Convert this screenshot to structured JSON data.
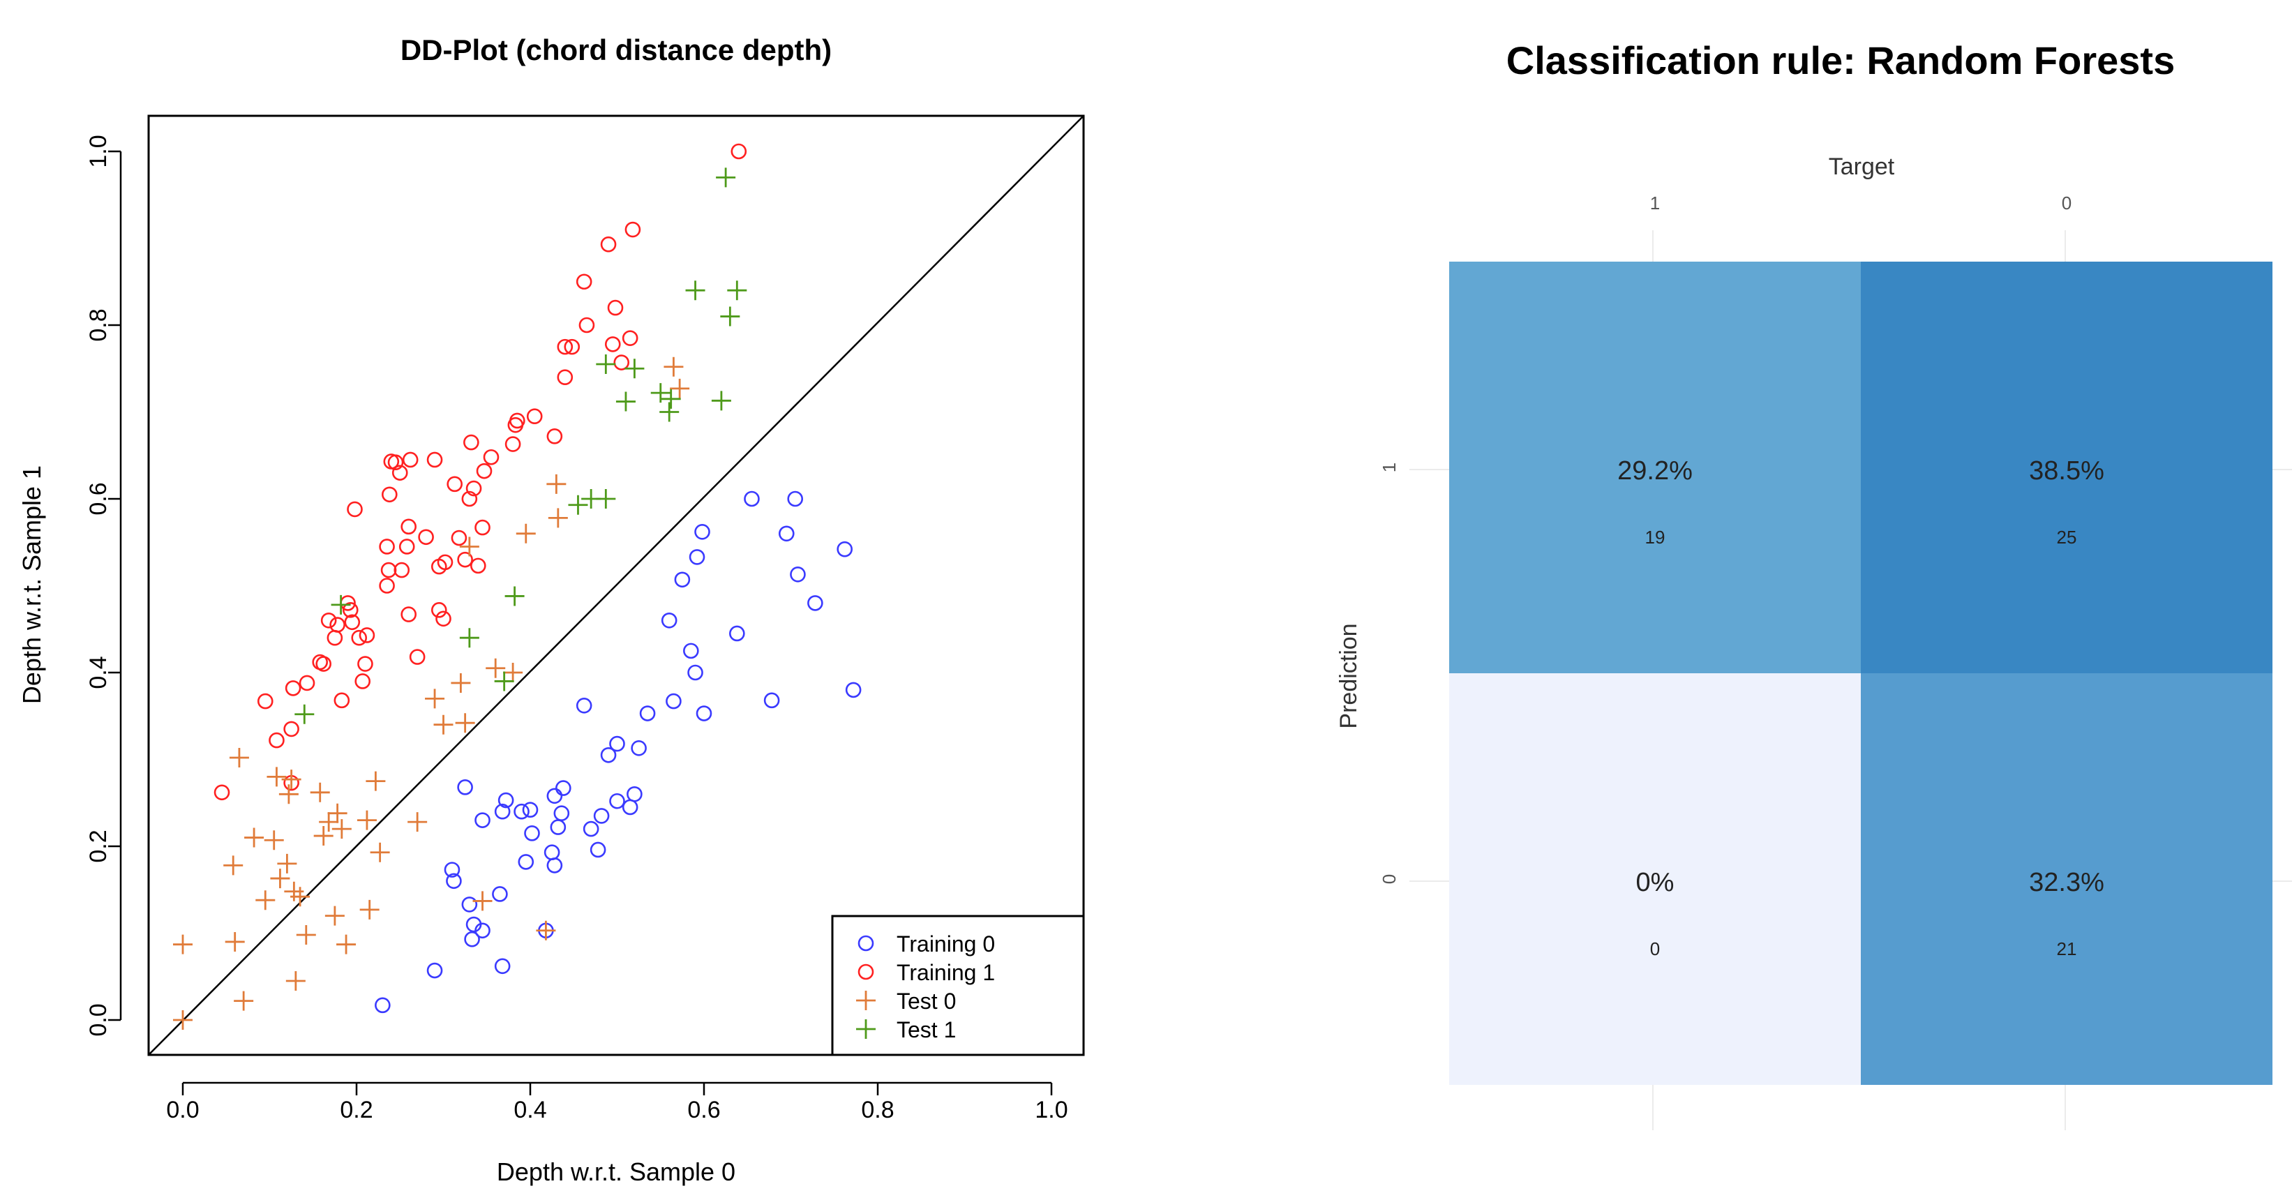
{
  "chart_data": [
    {
      "type": "scatter",
      "title": "DD-Plot (chord distance depth)",
      "xlabel": "Depth w.r.t. Sample 0",
      "ylabel": "Depth w.r.t. Sample 1",
      "xlim": [
        0,
        1
      ],
      "ylim": [
        0,
        1
      ],
      "xticks": [
        "0.0",
        "0.2",
        "0.4",
        "0.6",
        "0.8",
        "1.0"
      ],
      "yticks": [
        "0.0",
        "0.2",
        "0.4",
        "0.6",
        "0.8",
        "1.0"
      ],
      "diagonal": true,
      "legend_position": "bottom-right",
      "series": [
        {
          "name": "Training 0",
          "marker": "circle",
          "color": "#3a3aff",
          "points": [
            [
              0.23,
              0.017
            ],
            [
              0.29,
              0.057
            ],
            [
              0.31,
              0.173
            ],
            [
              0.312,
              0.16
            ],
            [
              0.325,
              0.268
            ],
            [
              0.33,
              0.133
            ],
            [
              0.333,
              0.093
            ],
            [
              0.335,
              0.11
            ],
            [
              0.345,
              0.103
            ],
            [
              0.345,
              0.23
            ],
            [
              0.365,
              0.145
            ],
            [
              0.368,
              0.062
            ],
            [
              0.368,
              0.24
            ],
            [
              0.372,
              0.253
            ],
            [
              0.39,
              0.24
            ],
            [
              0.395,
              0.182
            ],
            [
              0.4,
              0.242
            ],
            [
              0.402,
              0.215
            ],
            [
              0.418,
              0.103
            ],
            [
              0.425,
              0.193
            ],
            [
              0.428,
              0.258
            ],
            [
              0.428,
              0.178
            ],
            [
              0.432,
              0.222
            ],
            [
              0.436,
              0.238
            ],
            [
              0.438,
              0.267
            ],
            [
              0.462,
              0.362
            ],
            [
              0.47,
              0.22
            ],
            [
              0.478,
              0.196
            ],
            [
              0.482,
              0.235
            ],
            [
              0.49,
              0.305
            ],
            [
              0.5,
              0.318
            ],
            [
              0.5,
              0.252
            ],
            [
              0.515,
              0.245
            ],
            [
              0.52,
              0.26
            ],
            [
              0.525,
              0.313
            ],
            [
              0.535,
              0.353
            ],
            [
              0.56,
              0.46
            ],
            [
              0.565,
              0.367
            ],
            [
              0.575,
              0.507
            ],
            [
              0.585,
              0.425
            ],
            [
              0.59,
              0.4
            ],
            [
              0.592,
              0.533
            ],
            [
              0.598,
              0.562
            ],
            [
              0.6,
              0.353
            ],
            [
              0.638,
              0.445
            ],
            [
              0.655,
              0.6
            ],
            [
              0.678,
              0.368
            ],
            [
              0.695,
              0.56
            ],
            [
              0.705,
              0.6
            ],
            [
              0.708,
              0.513
            ],
            [
              0.728,
              0.48
            ],
            [
              0.762,
              0.542
            ],
            [
              0.772,
              0.38
            ]
          ]
        },
        {
          "name": "Training 1",
          "marker": "circle",
          "color": "#ff2020",
          "points": [
            [
              0.045,
              0.262
            ],
            [
              0.095,
              0.367
            ],
            [
              0.108,
              0.322
            ],
            [
              0.125,
              0.335
            ],
            [
              0.125,
              0.273
            ],
            [
              0.127,
              0.382
            ],
            [
              0.143,
              0.388
            ],
            [
              0.158,
              0.412
            ],
            [
              0.162,
              0.41
            ],
            [
              0.168,
              0.46
            ],
            [
              0.175,
              0.44
            ],
            [
              0.178,
              0.455
            ],
            [
              0.183,
              0.368
            ],
            [
              0.19,
              0.48
            ],
            [
              0.193,
              0.472
            ],
            [
              0.195,
              0.458
            ],
            [
              0.198,
              0.588
            ],
            [
              0.203,
              0.44
            ],
            [
              0.207,
              0.39
            ],
            [
              0.21,
              0.41
            ],
            [
              0.212,
              0.443
            ],
            [
              0.235,
              0.545
            ],
            [
              0.235,
              0.5
            ],
            [
              0.237,
              0.518
            ],
            [
              0.238,
              0.605
            ],
            [
              0.24,
              0.643
            ],
            [
              0.245,
              0.642
            ],
            [
              0.25,
              0.63
            ],
            [
              0.252,
              0.518
            ],
            [
              0.258,
              0.545
            ],
            [
              0.26,
              0.568
            ],
            [
              0.26,
              0.467
            ],
            [
              0.262,
              0.645
            ],
            [
              0.27,
              0.418
            ],
            [
              0.28,
              0.556
            ],
            [
              0.29,
              0.645
            ],
            [
              0.295,
              0.522
            ],
            [
              0.295,
              0.472
            ],
            [
              0.3,
              0.462
            ],
            [
              0.302,
              0.527
            ],
            [
              0.313,
              0.617
            ],
            [
              0.318,
              0.555
            ],
            [
              0.325,
              0.53
            ],
            [
              0.33,
              0.6
            ],
            [
              0.332,
              0.665
            ],
            [
              0.335,
              0.612
            ],
            [
              0.34,
              0.523
            ],
            [
              0.345,
              0.567
            ],
            [
              0.347,
              0.632
            ],
            [
              0.355,
              0.648
            ],
            [
              0.38,
              0.663
            ],
            [
              0.383,
              0.685
            ],
            [
              0.385,
              0.69
            ],
            [
              0.405,
              0.695
            ],
            [
              0.428,
              0.672
            ],
            [
              0.44,
              0.74
            ],
            [
              0.44,
              0.775
            ],
            [
              0.448,
              0.775
            ],
            [
              0.462,
              0.85
            ],
            [
              0.465,
              0.8
            ],
            [
              0.49,
              0.893
            ],
            [
              0.495,
              0.778
            ],
            [
              0.498,
              0.82
            ],
            [
              0.505,
              0.757
            ],
            [
              0.515,
              0.785
            ],
            [
              0.518,
              0.91
            ],
            [
              0.64,
              1.0
            ]
          ]
        },
        {
          "name": "Test 0",
          "marker": "plus",
          "color": "#e07b39",
          "points": [
            [
              0.0,
              0.0
            ],
            [
              0.0,
              0.087
            ],
            [
              0.058,
              0.178
            ],
            [
              0.06,
              0.09
            ],
            [
              0.065,
              0.302
            ],
            [
              0.07,
              0.022
            ],
            [
              0.082,
              0.21
            ],
            [
              0.095,
              0.138
            ],
            [
              0.105,
              0.207
            ],
            [
              0.108,
              0.28
            ],
            [
              0.112,
              0.163
            ],
            [
              0.12,
              0.18
            ],
            [
              0.122,
              0.26
            ],
            [
              0.125,
              0.277
            ],
            [
              0.128,
              0.148
            ],
            [
              0.13,
              0.045
            ],
            [
              0.135,
              0.142
            ],
            [
              0.142,
              0.098
            ],
            [
              0.158,
              0.262
            ],
            [
              0.162,
              0.212
            ],
            [
              0.168,
              0.228
            ],
            [
              0.175,
              0.12
            ],
            [
              0.178,
              0.238
            ],
            [
              0.183,
              0.22
            ],
            [
              0.188,
              0.087
            ],
            [
              0.212,
              0.23
            ],
            [
              0.215,
              0.127
            ],
            [
              0.222,
              0.275
            ],
            [
              0.227,
              0.193
            ],
            [
              0.27,
              0.228
            ],
            [
              0.29,
              0.37
            ],
            [
              0.3,
              0.34
            ],
            [
              0.32,
              0.388
            ],
            [
              0.325,
              0.342
            ],
            [
              0.33,
              0.545
            ],
            [
              0.345,
              0.137
            ],
            [
              0.36,
              0.405
            ],
            [
              0.38,
              0.4
            ],
            [
              0.395,
              0.56
            ],
            [
              0.418,
              0.103
            ],
            [
              0.43,
              0.617
            ],
            [
              0.432,
              0.578
            ],
            [
              0.565,
              0.752
            ],
            [
              0.572,
              0.727
            ]
          ]
        },
        {
          "name": "Test 1",
          "marker": "plus",
          "color": "#4e9a1a",
          "points": [
            [
              0.14,
              0.352
            ],
            [
              0.182,
              0.478
            ],
            [
              0.33,
              0.44
            ],
            [
              0.37,
              0.39
            ],
            [
              0.382,
              0.488
            ],
            [
              0.455,
              0.593
            ],
            [
              0.47,
              0.6
            ],
            [
              0.487,
              0.6
            ],
            [
              0.487,
              0.755
            ],
            [
              0.51,
              0.712
            ],
            [
              0.52,
              0.75
            ],
            [
              0.55,
              0.722
            ],
            [
              0.56,
              0.7
            ],
            [
              0.562,
              0.715
            ],
            [
              0.59,
              0.84
            ],
            [
              0.62,
              0.713
            ],
            [
              0.625,
              0.97
            ],
            [
              0.63,
              0.81
            ],
            [
              0.638,
              0.84
            ]
          ]
        }
      ]
    },
    {
      "type": "heatmap",
      "title": "Classification rule: Random Forests",
      "xlabel": "Target",
      "ylabel": "Prediction",
      "x_categories": [
        "1",
        "0"
      ],
      "y_categories": [
        "1",
        "0"
      ],
      "cells": [
        {
          "target": "1",
          "prediction": "1",
          "percent": "29.2%",
          "count": "19",
          "color": "#62a7d3"
        },
        {
          "target": "0",
          "prediction": "1",
          "percent": "38.5%",
          "count": "25",
          "color": "#3987c3"
        },
        {
          "target": "1",
          "prediction": "0",
          "percent": "0%",
          "count": "0",
          "color": "#eef2fd"
        },
        {
          "target": "0",
          "prediction": "0",
          "percent": "32.3%",
          "count": "21",
          "color": "#569ccf"
        }
      ]
    }
  ]
}
